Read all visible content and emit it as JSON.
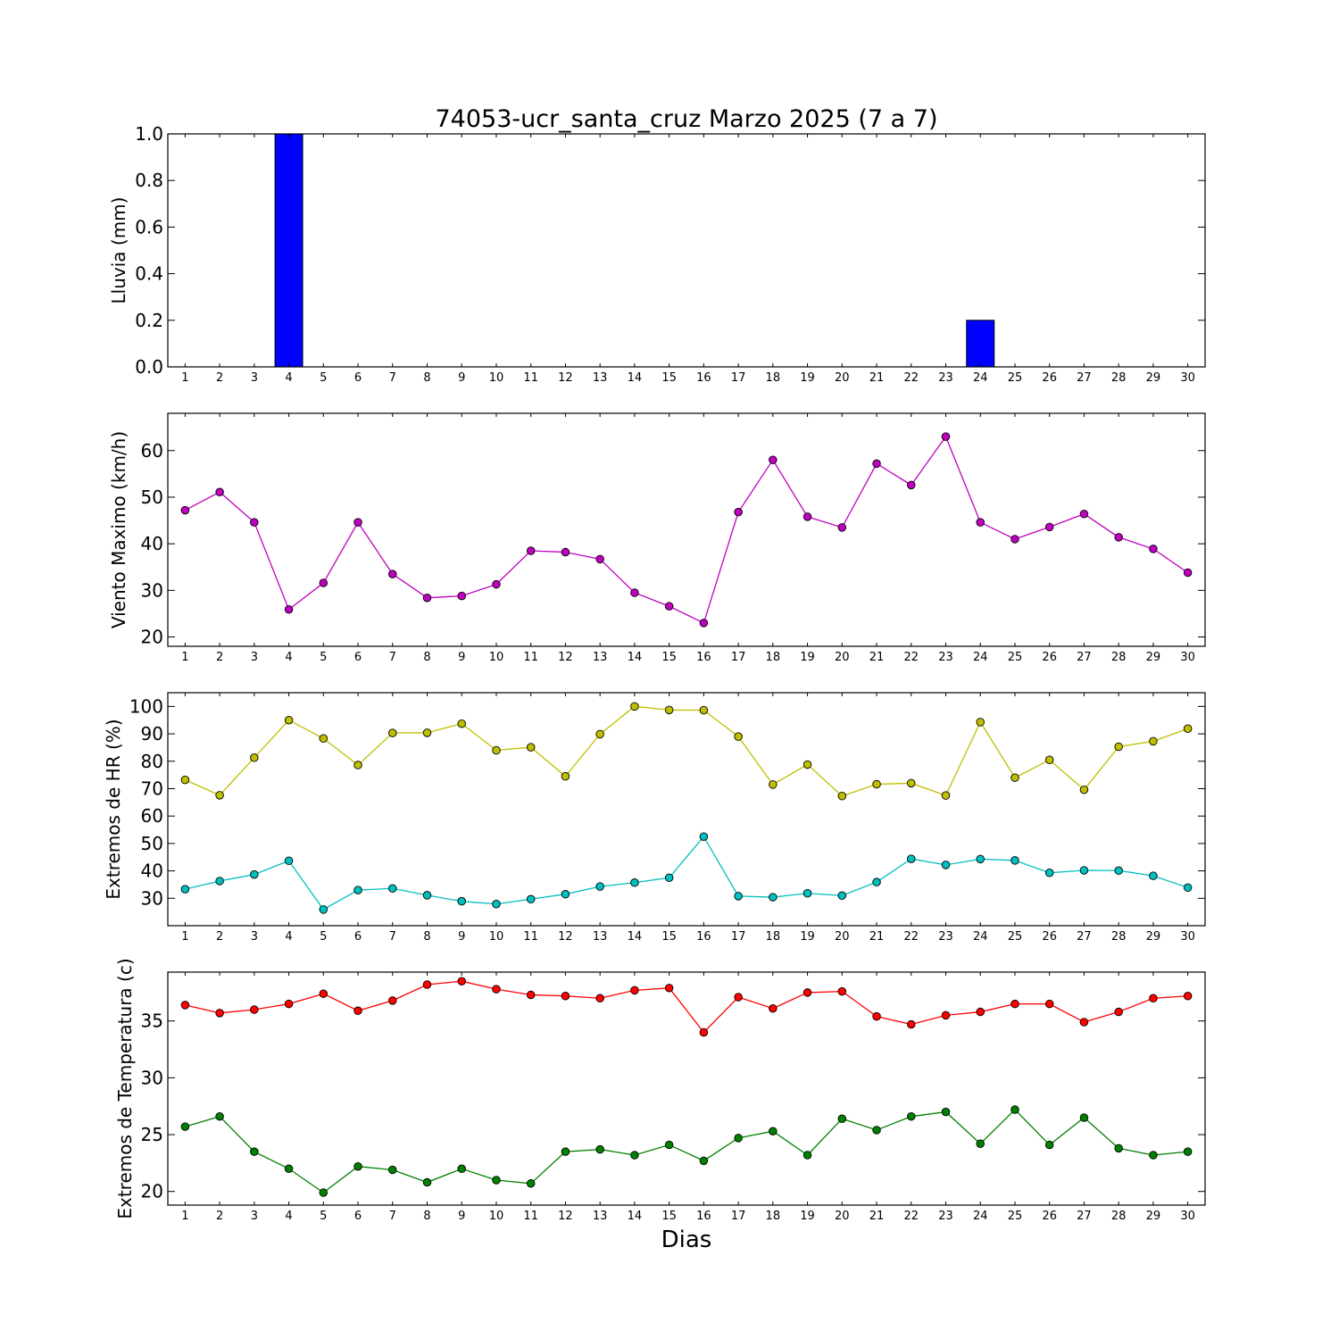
{
  "figure": {
    "title": "74053-ucr_santa_cruz Marzo 2025  (7 a 7)",
    "xlabel": "Dias"
  },
  "chart_data": [
    {
      "type": "bar",
      "ylabel": "Lluvia (mm)",
      "ylim": [
        0,
        1.0
      ],
      "yticks": [
        0.0,
        0.2,
        0.4,
        0.6,
        0.8,
        1.0
      ],
      "ytick_labels": [
        "0.0",
        "0.2",
        "0.4",
        "0.6",
        "0.8",
        "1.0"
      ],
      "x": [
        1,
        2,
        3,
        4,
        5,
        6,
        7,
        8,
        9,
        10,
        11,
        12,
        13,
        14,
        15,
        16,
        17,
        18,
        19,
        20,
        21,
        22,
        23,
        24,
        25,
        26,
        27,
        28,
        29,
        30
      ],
      "xtick_labels": [
        "1",
        "2",
        "3",
        "4",
        "5",
        "6",
        "7",
        "8",
        "9",
        "10",
        "11",
        "12",
        "13",
        "14",
        "15",
        "16",
        "17",
        "18",
        "19",
        "20",
        "21",
        "22",
        "23",
        "24",
        "25",
        "26",
        "27",
        "28",
        "29",
        "30"
      ],
      "series": [
        {
          "color": "#0000ff",
          "values": [
            0,
            0,
            0,
            1.0,
            0,
            0,
            0,
            0,
            0,
            0,
            0,
            0,
            0,
            0,
            0,
            0,
            0,
            0,
            0,
            0,
            0,
            0,
            0,
            0.2,
            0,
            0,
            0,
            0,
            0,
            0
          ]
        }
      ]
    },
    {
      "type": "line",
      "ylabel": "Viento Maximo (km/h)",
      "ylim": [
        18,
        68
      ],
      "yticks": [
        20,
        30,
        40,
        50,
        60
      ],
      "ytick_labels": [
        "20",
        "30",
        "40",
        "50",
        "60"
      ],
      "x": [
        1,
        2,
        3,
        4,
        5,
        6,
        7,
        8,
        9,
        10,
        11,
        12,
        13,
        14,
        15,
        16,
        17,
        18,
        19,
        20,
        21,
        22,
        23,
        24,
        25,
        26,
        27,
        28,
        29,
        30
      ],
      "xtick_labels": [
        "1",
        "2",
        "3",
        "4",
        "5",
        "6",
        "7",
        "8",
        "9",
        "10",
        "11",
        "12",
        "13",
        "14",
        "15",
        "16",
        "17",
        "18",
        "19",
        "20",
        "21",
        "22",
        "23",
        "24",
        "25",
        "26",
        "27",
        "28",
        "29",
        "30"
      ],
      "series": [
        {
          "color": "#bf00bf",
          "values": [
            47.2,
            51.1,
            44.6,
            25.9,
            31.6,
            44.6,
            33.5,
            28.4,
            28.8,
            31.3,
            38.5,
            38.2,
            36.7,
            29.5,
            26.6,
            23.0,
            46.8,
            58.0,
            45.8,
            43.5,
            57.2,
            52.6,
            63.0,
            44.6,
            41.0,
            43.6,
            46.4,
            41.4,
            38.9,
            33.8
          ]
        }
      ]
    },
    {
      "type": "line",
      "ylabel": "Extremos de HR (%)",
      "ylim": [
        20,
        105
      ],
      "yticks": [
        30,
        40,
        50,
        60,
        70,
        80,
        90,
        100
      ],
      "ytick_labels": [
        "30",
        "40",
        "50",
        "60",
        "70",
        "80",
        "90",
        "100"
      ],
      "x": [
        1,
        2,
        3,
        4,
        5,
        6,
        7,
        8,
        9,
        10,
        11,
        12,
        13,
        14,
        15,
        16,
        17,
        18,
        19,
        20,
        21,
        22,
        23,
        24,
        25,
        26,
        27,
        28,
        29,
        30
      ],
      "xtick_labels": [
        "1",
        "2",
        "3",
        "4",
        "5",
        "6",
        "7",
        "8",
        "9",
        "10",
        "11",
        "12",
        "13",
        "14",
        "15",
        "16",
        "17",
        "18",
        "19",
        "20",
        "21",
        "22",
        "23",
        "24",
        "25",
        "26",
        "27",
        "28",
        "29",
        "30"
      ],
      "series": [
        {
          "color": "#bfbf00",
          "values": [
            73.2,
            67.6,
            81.3,
            95.0,
            88.3,
            78.6,
            90.3,
            90.4,
            93.7,
            84.0,
            85.1,
            74.5,
            89.9,
            100.0,
            98.7,
            98.6,
            89.0,
            71.5,
            78.8,
            67.3,
            71.6,
            72.0,
            67.5,
            94.3,
            74.0,
            80.5,
            69.6,
            85.3,
            87.3,
            91.9
          ]
        },
        {
          "color": "#00bfbf",
          "values": [
            33.3,
            36.3,
            38.7,
            43.7,
            25.9,
            33.0,
            33.6,
            31.1,
            28.9,
            27.9,
            29.7,
            31.5,
            34.3,
            35.7,
            37.5,
            52.5,
            30.8,
            30.4,
            31.8,
            31.0,
            35.9,
            44.4,
            42.2,
            44.3,
            43.8,
            39.3,
            40.2,
            40.1,
            38.2,
            33.9
          ]
        }
      ]
    },
    {
      "type": "line",
      "ylabel": "Extremos de Temperatura (c)",
      "ylim": [
        18.8,
        39.3
      ],
      "yticks": [
        20,
        25,
        30,
        35
      ],
      "ytick_labels": [
        "20",
        "25",
        "30",
        "35"
      ],
      "x": [
        1,
        2,
        3,
        4,
        5,
        6,
        7,
        8,
        9,
        10,
        11,
        12,
        13,
        14,
        15,
        16,
        17,
        18,
        19,
        20,
        21,
        22,
        23,
        24,
        25,
        26,
        27,
        28,
        29,
        30
      ],
      "xtick_labels": [
        "1",
        "2",
        "3",
        "4",
        "5",
        "6",
        "7",
        "8",
        "9",
        "10",
        "11",
        "12",
        "13",
        "14",
        "15",
        "16",
        "17",
        "18",
        "19",
        "20",
        "21",
        "22",
        "23",
        "24",
        "25",
        "26",
        "27",
        "28",
        "29",
        "30"
      ],
      "series": [
        {
          "color": "#ff0000",
          "values": [
            36.4,
            35.7,
            36.0,
            36.5,
            37.4,
            35.9,
            36.8,
            38.2,
            38.5,
            37.8,
            37.3,
            37.2,
            37.0,
            37.7,
            37.9,
            34.0,
            37.1,
            36.1,
            37.5,
            37.6,
            35.4,
            34.7,
            35.5,
            35.8,
            36.5,
            36.5,
            34.9,
            35.8,
            37.0,
            37.2
          ]
        },
        {
          "color": "#008000",
          "values": [
            25.7,
            26.6,
            23.5,
            22.0,
            19.9,
            22.2,
            21.9,
            20.8,
            22.0,
            21.0,
            20.7,
            23.5,
            23.7,
            23.2,
            24.1,
            22.7,
            24.7,
            25.3,
            23.2,
            26.4,
            25.4,
            26.6,
            27.0,
            24.2,
            27.2,
            24.1,
            26.5,
            23.8,
            23.2,
            23.5
          ]
        }
      ]
    }
  ]
}
